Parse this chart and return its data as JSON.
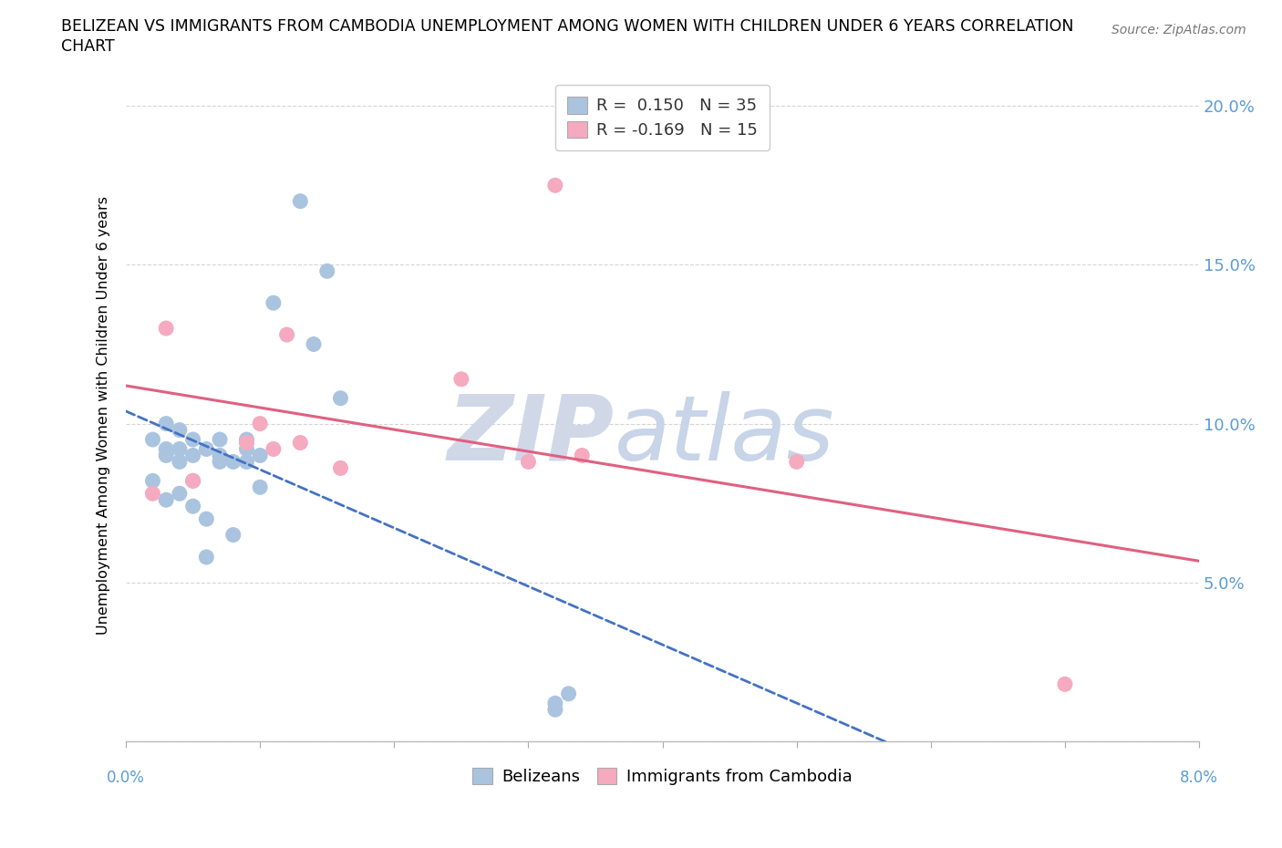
{
  "title_line1": "BELIZEAN VS IMMIGRANTS FROM CAMBODIA UNEMPLOYMENT AMONG WOMEN WITH CHILDREN UNDER 6 YEARS CORRELATION",
  "title_line2": "CHART",
  "source": "Source: ZipAtlas.com",
  "ylabel": "Unemployment Among Women with Children Under 6 years",
  "xmin": 0.0,
  "xmax": 0.08,
  "ymin": 0.0,
  "ymax": 0.205,
  "yticks": [
    0.0,
    0.05,
    0.1,
    0.15,
    0.2
  ],
  "ytick_labels": [
    "",
    "5.0%",
    "10.0%",
    "15.0%",
    "20.0%"
  ],
  "xticks": [
    0.0,
    0.01,
    0.02,
    0.03,
    0.04,
    0.05,
    0.06,
    0.07,
    0.08
  ],
  "legend_r1": "R =  0.150   N = 35",
  "legend_r2": "R = -0.169   N = 15",
  "belizean_color": "#aac4e0",
  "cambodia_color": "#f5aabf",
  "trendline_belizean_color": "#4472c4",
  "trendline_cambodia_color": "#e06080",
  "watermark_ZIP_color": "#d0d8e8",
  "watermark_atlas_color": "#c8d4e8",
  "belizeans_x": [
    0.002,
    0.002,
    0.003,
    0.003,
    0.003,
    0.003,
    0.004,
    0.004,
    0.004,
    0.004,
    0.005,
    0.005,
    0.005,
    0.005,
    0.006,
    0.006,
    0.006,
    0.007,
    0.007,
    0.007,
    0.008,
    0.008,
    0.009,
    0.009,
    0.009,
    0.01,
    0.01,
    0.011,
    0.013,
    0.014,
    0.015,
    0.016,
    0.032,
    0.032,
    0.033
  ],
  "belizeans_y": [
    0.082,
    0.095,
    0.076,
    0.09,
    0.092,
    0.1,
    0.078,
    0.088,
    0.092,
    0.098,
    0.074,
    0.082,
    0.09,
    0.095,
    0.058,
    0.07,
    0.092,
    0.088,
    0.09,
    0.095,
    0.065,
    0.088,
    0.088,
    0.092,
    0.095,
    0.08,
    0.09,
    0.138,
    0.17,
    0.125,
    0.148,
    0.108,
    0.01,
    0.012,
    0.015
  ],
  "cambodia_x": [
    0.002,
    0.003,
    0.005,
    0.009,
    0.01,
    0.011,
    0.012,
    0.013,
    0.016,
    0.025,
    0.03,
    0.032,
    0.034,
    0.05,
    0.07
  ],
  "cambodia_y": [
    0.078,
    0.13,
    0.082,
    0.094,
    0.1,
    0.092,
    0.128,
    0.094,
    0.086,
    0.114,
    0.088,
    0.175,
    0.09,
    0.088,
    0.018
  ]
}
